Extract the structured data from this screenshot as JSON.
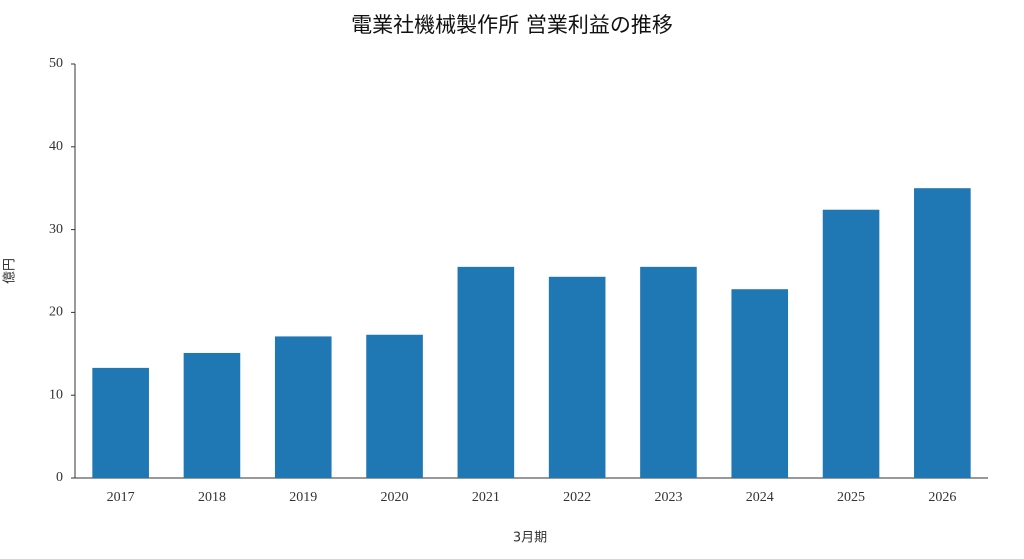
{
  "chart_data": {
    "type": "bar",
    "title": "電業社機械製作所 営業利益の推移",
    "x_label": "3月期",
    "y_label": "億円",
    "categories": [
      "2017",
      "2018",
      "2019",
      "2020",
      "2021",
      "2022",
      "2023",
      "2024",
      "2025",
      "2026"
    ],
    "values": [
      13.3,
      15.1,
      17.1,
      17.3,
      25.5,
      24.3,
      25.5,
      22.8,
      32.4,
      35.0
    ],
    "color": "#1f77b4",
    "ylim": [
      0,
      50
    ],
    "yticks": [
      0,
      10,
      20,
      30,
      40,
      50
    ],
    "grid": false
  }
}
